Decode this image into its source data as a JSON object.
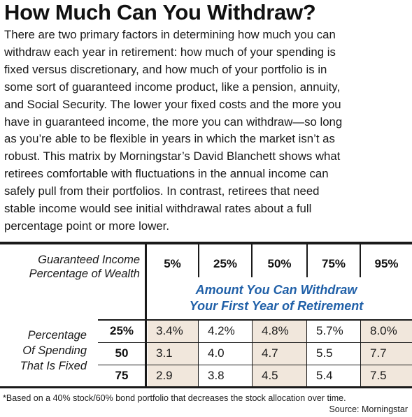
{
  "title": "How Much Can You Withdraw?",
  "intro_lines": [
    "There are two primary factors in determining how much you can",
    "withdraw each year in retirement: how much of your spending is",
    "fixed versus discretionary, and how much of your portfolio is in",
    "some sort of guaranteed income product, like a pension, annuity,",
    "and Social Security. The lower your fixed costs and the more you",
    "have in guaranteed income, the more you can withdraw—so long",
    "as you’re able to be flexible in years in which the market isn’t as",
    "robust. This matrix by Morningstar’s David Blanchett shows what",
    "retirees comfortable with fluctuations in the annual income can",
    "safely pull from their portfolios. In contrast, retirees that need",
    "stable income would see initial withdrawal rates about a full",
    "percentage point or more lower."
  ],
  "table": {
    "column_header_label": [
      "Guaranteed Income",
      "Percentage of Wealth"
    ],
    "columns": [
      "5%",
      "25%",
      "50%",
      "75%",
      "95%"
    ],
    "subtitle": [
      "Amount You Can Withdraw",
      "Your First Year of Retirement"
    ],
    "row_header_label": [
      "Percentage",
      "Of Spending",
      "That Is Fixed"
    ],
    "rows": [
      {
        "label": "25%",
        "values": [
          "3.4%",
          "4.2%",
          "4.8%",
          "5.7%",
          "8.0%"
        ]
      },
      {
        "label": "50",
        "values": [
          "3.1",
          "4.0",
          "4.7",
          "5.5",
          "7.7"
        ]
      },
      {
        "label": "75",
        "values": [
          "2.9",
          "3.8",
          "4.5",
          "5.4",
          "7.5"
        ]
      }
    ]
  },
  "footnote": "*Based on a 40% stock/60% bond portfolio that decreases the stock allocation over time.",
  "source": "Source: Morningstar",
  "colors": {
    "subtitle_blue": "#2060a8",
    "shade_tan": "#f1e7dc",
    "rule": "#1a1a1a"
  }
}
